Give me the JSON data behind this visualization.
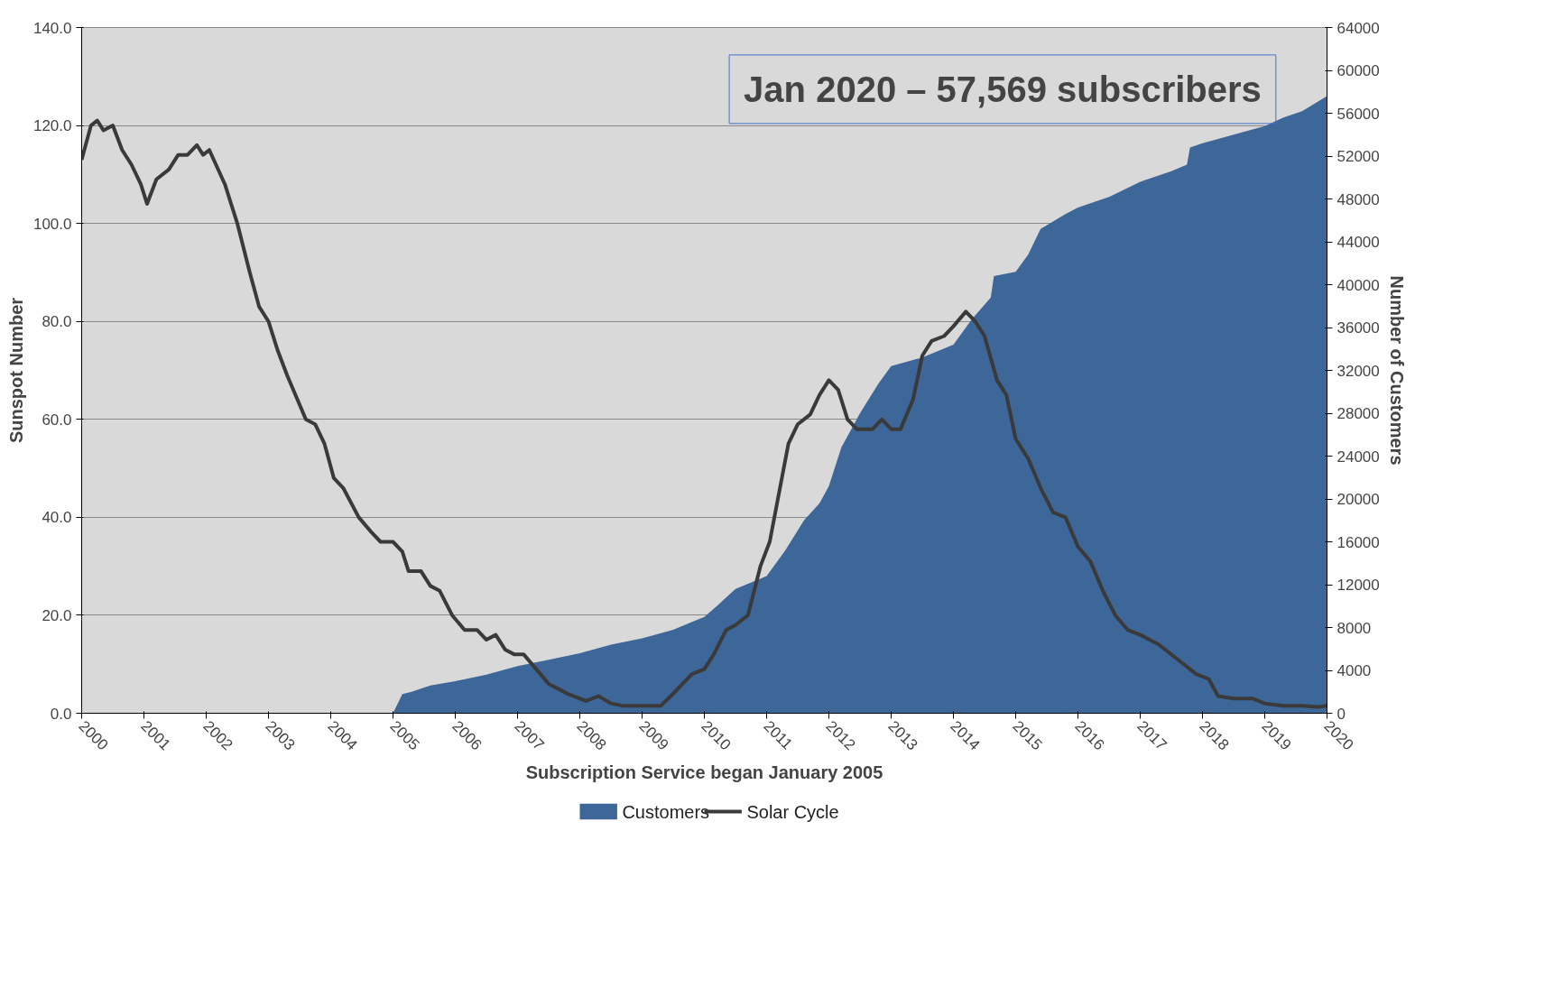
{
  "chart_data": {
    "type": "area",
    "xlabel": "Subscription Service began January 2005",
    "ylabel": "Sunspot Number",
    "y2label": "Number of Customers",
    "annotations": [
      "Jan 2020 – 57,569 subscribers"
    ],
    "xlim": [
      2000,
      2020
    ],
    "xticks": [
      2000,
      2001,
      2002,
      2003,
      2004,
      2005,
      2006,
      2007,
      2008,
      2009,
      2010,
      2011,
      2012,
      2013,
      2014,
      2015,
      2016,
      2017,
      2018,
      2019,
      2020
    ],
    "ylim": [
      0,
      140
    ],
    "yticks": [
      {
        "value": 0,
        "label": "0.0"
      },
      {
        "value": 20,
        "label": "20.0"
      },
      {
        "value": 40,
        "label": "40.0"
      },
      {
        "value": 60,
        "label": "60.0"
      },
      {
        "value": 80,
        "label": "80.0"
      },
      {
        "value": 100,
        "label": "100.0"
      },
      {
        "value": 120,
        "label": "120.0"
      },
      {
        "value": 140,
        "label": "140.0"
      }
    ],
    "y2lim": [
      0,
      64000
    ],
    "y2ticks": [
      0,
      4000,
      8000,
      12000,
      16000,
      20000,
      24000,
      28000,
      32000,
      36000,
      40000,
      44000,
      48000,
      52000,
      56000,
      60000,
      64000
    ],
    "grid": "y",
    "legend": "bottom",
    "series": [
      {
        "name": "Customers",
        "axis": "y2",
        "color": "#3d6699",
        "x": [
          2005.0,
          2005.15,
          2005.3,
          2005.6,
          2006.0,
          2006.5,
          2007.0,
          2007.5,
          2008.0,
          2008.5,
          2009.0,
          2009.5,
          2010.0,
          2010.2,
          2010.5,
          2011.0,
          2011.3,
          2011.6,
          2011.85,
          2012.0,
          2012.2,
          2012.5,
          2012.8,
          2013.0,
          2013.5,
          2014.0,
          2014.3,
          2014.6,
          2014.65,
          2015.0,
          2015.2,
          2015.4,
          2015.8,
          2016.0,
          2016.5,
          2017.0,
          2017.5,
          2017.75,
          2017.8,
          2018.0,
          2018.5,
          2019.0,
          2019.3,
          2019.6,
          2020.0
        ],
        "values": [
          0,
          1800,
          2000,
          2600,
          3000,
          3600,
          4400,
          5000,
          5600,
          6400,
          7000,
          7800,
          9000,
          10000,
          11600,
          12800,
          15200,
          18000,
          19600,
          21200,
          24800,
          28000,
          30800,
          32400,
          33200,
          34400,
          36800,
          38800,
          40800,
          41200,
          42800,
          45200,
          46600,
          47200,
          48200,
          49600,
          50600,
          51200,
          52800,
          53200,
          54000,
          54800,
          55600,
          56200,
          57600
        ]
      },
      {
        "name": "Solar Cycle",
        "type": "line",
        "axis": "y",
        "color": "#3a3a3a",
        "x": [
          2000.0,
          2000.15,
          2000.25,
          2000.35,
          2000.5,
          2000.65,
          2000.8,
          2000.95,
          2001.05,
          2001.2,
          2001.4,
          2001.55,
          2001.7,
          2001.85,
          2001.95,
          2002.05,
          2002.3,
          2002.5,
          2002.7,
          2002.85,
          2003.0,
          2003.15,
          2003.3,
          2003.5,
          2003.6,
          2003.75,
          2003.9,
          2004.05,
          2004.2,
          2004.45,
          2004.65,
          2004.8,
          2005.0,
          2005.15,
          2005.25,
          2005.45,
          2005.6,
          2005.75,
          2005.95,
          2006.15,
          2006.35,
          2006.5,
          2006.65,
          2006.8,
          2006.95,
          2007.1,
          2007.3,
          2007.5,
          2007.8,
          2008.1,
          2008.3,
          2008.5,
          2008.7,
          2009.0,
          2009.3,
          2009.5,
          2009.8,
          2010.0,
          2010.15,
          2010.35,
          2010.5,
          2010.7,
          2010.9,
          2011.05,
          2011.2,
          2011.35,
          2011.5,
          2011.7,
          2011.85,
          2012.0,
          2012.15,
          2012.3,
          2012.45,
          2012.7,
          2012.85,
          2013.0,
          2013.15,
          2013.35,
          2013.5,
          2013.65,
          2013.85,
          2014.0,
          2014.2,
          2014.35,
          2014.5,
          2014.7,
          2014.85,
          2015.0,
          2015.2,
          2015.4,
          2015.6,
          2015.8,
          2016.0,
          2016.2,
          2016.4,
          2016.6,
          2016.8,
          2017.0,
          2017.3,
          2017.6,
          2017.9,
          2018.1,
          2018.25,
          2018.5,
          2018.8,
          2019.0,
          2019.3,
          2019.6,
          2019.85,
          2020.0
        ],
        "values": [
          113,
          120,
          121,
          119,
          120,
          115,
          112,
          108,
          104,
          109,
          111,
          114,
          114,
          116,
          114,
          115,
          108,
          100,
          90,
          83,
          80,
          74,
          69,
          63,
          60,
          59,
          55,
          48,
          46,
          40,
          37,
          35,
          35,
          33,
          29,
          29,
          26,
          25,
          20,
          17,
          17,
          15,
          16,
          13,
          12,
          12,
          9,
          6,
          4,
          2.5,
          3.5,
          2,
          1.5,
          1.5,
          1.5,
          4,
          8,
          9,
          12,
          17,
          18,
          20,
          30,
          35,
          45,
          55,
          59,
          61,
          65,
          68,
          66,
          60,
          58,
          58,
          60,
          58,
          58,
          64,
          73,
          76,
          77,
          79,
          82,
          80,
          77,
          68,
          65,
          56,
          52,
          46,
          41,
          40,
          34,
          31,
          25,
          20,
          17,
          16,
          14,
          11,
          8,
          7,
          3.5,
          3,
          3,
          2,
          1.5,
          1.5,
          1.3,
          1.5
        ]
      }
    ]
  }
}
